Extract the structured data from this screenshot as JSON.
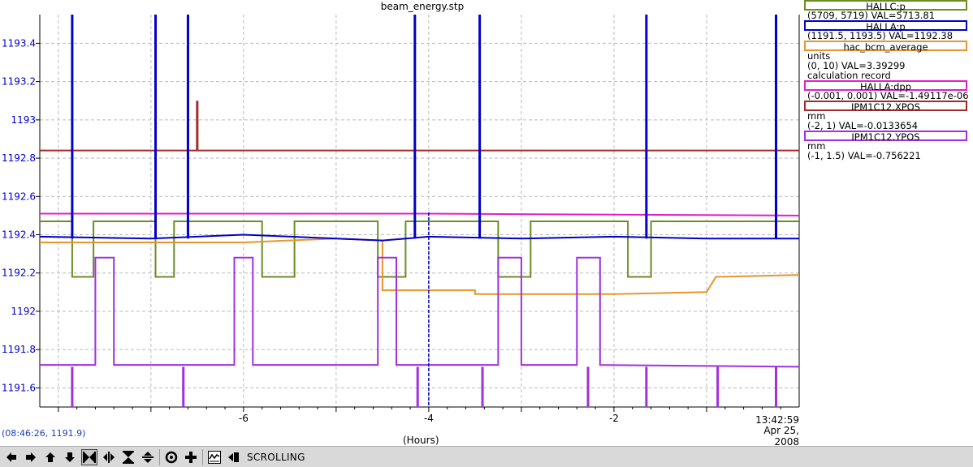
{
  "chart_data": {
    "type": "line",
    "title": "beam_energy.stp",
    "xlabel": "(Hours)",
    "xlim": [
      -8.2,
      0
    ],
    "ylim": [
      1191.5,
      1193.55
    ],
    "x_ticks": [
      -6,
      -4,
      -2
    ],
    "x_tick_labels": [
      "-6",
      "-4",
      "-2"
    ],
    "y_ticks": [
      1191.6,
      1191.8,
      1192,
      1192.2,
      1192.4,
      1192.6,
      1192.8,
      1193,
      1193.2,
      1193.4
    ],
    "y_tick_labels": [
      "1191.6",
      "1191.8",
      "1192",
      "1192.2",
      "1192.4",
      "1192.6",
      "1192.8",
      "1193",
      "1193.2",
      "1193.4"
    ],
    "grid": true,
    "legend_position": "right",
    "series": [
      {
        "name": "HALLC:p",
        "color": "#6b8e23",
        "range": "(5709, 5719)",
        "val": "5713.81",
        "points": [
          [
            -8.2,
            1192.47
          ],
          [
            -7.85,
            1192.47
          ],
          [
            -7.85,
            1192.18
          ],
          [
            -7.62,
            1192.18
          ],
          [
            -7.62,
            1192.47
          ],
          [
            -6.95,
            1192.47
          ],
          [
            -6.95,
            1192.18
          ],
          [
            -6.75,
            1192.18
          ],
          [
            -6.75,
            1192.47
          ],
          [
            -5.8,
            1192.47
          ],
          [
            -5.8,
            1192.18
          ],
          [
            -5.45,
            1192.18
          ],
          [
            -5.45,
            1192.47
          ],
          [
            -4.55,
            1192.47
          ],
          [
            -4.55,
            1192.18
          ],
          [
            -4.25,
            1192.18
          ],
          [
            -4.25,
            1192.47
          ],
          [
            -3.25,
            1192.47
          ],
          [
            -3.25,
            1192.18
          ],
          [
            -2.9,
            1192.18
          ],
          [
            -2.9,
            1192.47
          ],
          [
            -1.85,
            1192.47
          ],
          [
            -1.85,
            1192.18
          ],
          [
            -1.6,
            1192.18
          ],
          [
            -1.6,
            1192.47
          ],
          [
            -0.2,
            1192.47
          ],
          [
            0,
            1192.47
          ]
        ]
      },
      {
        "name": "HALLA:p",
        "color": "#0000cc",
        "range": "(1191.5, 1193.5)",
        "val": "1192.38",
        "points": [
          [
            -8.2,
            1192.39
          ],
          [
            -7.0,
            1192.38
          ],
          [
            -6.0,
            1192.4
          ],
          [
            -5.0,
            1192.38
          ],
          [
            -4.5,
            1192.37
          ],
          [
            -4.0,
            1192.39
          ],
          [
            -3.0,
            1192.38
          ],
          [
            -2.0,
            1192.39
          ],
          [
            -1.0,
            1192.38
          ],
          [
            0,
            1192.38
          ]
        ]
      },
      {
        "name": "hac_bcm_average",
        "color": "#e8952e",
        "units": "units",
        "range": "(0, 10)",
        "val": "3.39299",
        "note": "calculation record",
        "points": [
          [
            -8.2,
            1192.36
          ],
          [
            -6.0,
            1192.36
          ],
          [
            -5.0,
            1192.38
          ],
          [
            -4.5,
            1192.37
          ],
          [
            -4.5,
            1192.11
          ],
          [
            -4.0,
            1192.11
          ],
          [
            -3.5,
            1192.11
          ],
          [
            -3.5,
            1192.09
          ],
          [
            -2.0,
            1192.09
          ],
          [
            -1.0,
            1192.1
          ],
          [
            -0.9,
            1192.18
          ],
          [
            0,
            1192.19
          ]
        ]
      },
      {
        "name": "HALLA:dpp",
        "color": "#e020c8",
        "range": "(-0.001, 0.001)",
        "val": "-1.49117e-06",
        "points": [
          [
            -8.2,
            1192.51
          ],
          [
            -4.0,
            1192.51
          ],
          [
            0,
            1192.5
          ]
        ]
      },
      {
        "name": "IPM1C12.XPOS",
        "color": "#a52a2a",
        "units": "mm",
        "range": "(-2, 1)",
        "val": "-0.0133654",
        "points": [
          [
            -8.2,
            1192.84
          ],
          [
            -6.0,
            1192.84
          ],
          [
            -4.0,
            1192.84
          ],
          [
            -2.0,
            1192.84
          ],
          [
            0,
            1192.84
          ]
        ]
      },
      {
        "name": "IPM1C12.YPOS",
        "color": "#a030e0",
        "units": "mm",
        "range": "(-1, 1.5)",
        "val": "-0.756221",
        "points": [
          [
            -8.2,
            1191.72
          ],
          [
            -7.6,
            1191.72
          ],
          [
            -7.6,
            1192.28
          ],
          [
            -7.4,
            1192.28
          ],
          [
            -7.4,
            1191.72
          ],
          [
            -6.1,
            1191.72
          ],
          [
            -6.1,
            1192.28
          ],
          [
            -5.9,
            1192.28
          ],
          [
            -5.9,
            1191.72
          ],
          [
            -4.55,
            1191.72
          ],
          [
            -4.55,
            1192.28
          ],
          [
            -4.35,
            1192.28
          ],
          [
            -4.35,
            1191.72
          ],
          [
            -3.25,
            1191.72
          ],
          [
            -3.25,
            1192.28
          ],
          [
            -3.0,
            1192.28
          ],
          [
            -3.0,
            1191.72
          ],
          [
            -2.4,
            1191.72
          ],
          [
            -2.4,
            1192.28
          ],
          [
            -2.15,
            1192.28
          ],
          [
            -2.15,
            1191.72
          ],
          [
            0,
            1191.71
          ]
        ]
      }
    ],
    "spikes": [
      {
        "series": "HALLA:p",
        "x": [
          -7.85,
          -6.95,
          -6.6,
          -4.15,
          -3.45,
          -1.65,
          -0.25
        ],
        "to": 1193.55
      },
      {
        "series": "IPM1C12.XPOS",
        "x": [
          -6.5
        ],
        "to": 1193.1
      },
      {
        "series": "IPM1C12.YPOS",
        "x": [
          -7.85,
          -6.65,
          -4.12,
          -3.42,
          -2.28,
          -1.65,
          -0.88,
          -0.25
        ],
        "to": 1191.5
      }
    ]
  },
  "legend": {
    "entries": [
      {
        "box": "HALLC:p",
        "lines": [
          "(5709, 5719) VAL=5713.81"
        ]
      },
      {
        "box": "HALLA:p",
        "lines": [
          "(1191.5, 1193.5) VAL=1192.38"
        ]
      },
      {
        "box": "hac_bcm_average",
        "lines": [
          "units",
          "(0, 10) VAL=3.39299",
          "calculation record"
        ]
      },
      {
        "box": "HALLA:dpp",
        "lines": [
          "(-0.001, 0.001) VAL=-1.49117e-06"
        ]
      },
      {
        "box": "IPM1C12.XPOS",
        "lines": [
          "mm",
          "(-2, 1) VAL=-0.0133654"
        ]
      },
      {
        "box": "IPM1C12.YPOS",
        "lines": [
          "mm",
          "(-1, 1.5) VAL=-0.756221"
        ]
      }
    ]
  },
  "readout": {
    "coords": "(08:46:26, 1191.9)"
  },
  "time_axis": {
    "time": "13:42:59",
    "date": "Apr 25, 2008"
  },
  "toolbar": {
    "mode_label": "SCROLLING",
    "icons": [
      "arrow-left-icon",
      "arrow-right-icon",
      "arrow-up-icon",
      "arrow-down-icon",
      "zoom-in-xy-icon",
      "zoom-x-icon",
      "zoom-in-y-icon",
      "zoom-y-icon",
      "home-icon",
      "crosshair-icon",
      "chart-icon",
      "print-icon"
    ]
  }
}
